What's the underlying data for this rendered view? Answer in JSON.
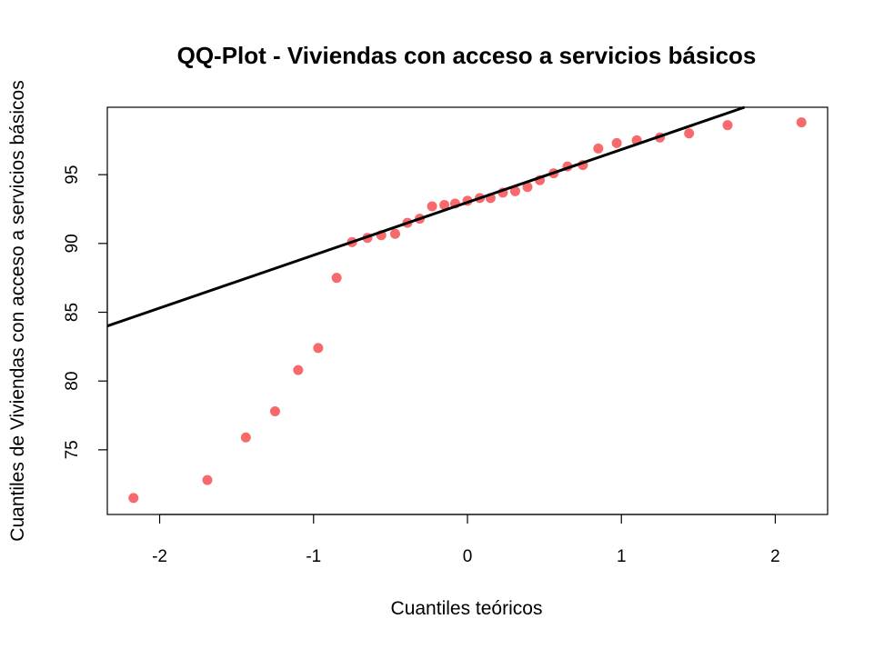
{
  "chart_data": {
    "type": "scatter",
    "title": "QQ-Plot - Viviendas con acceso a servicios básicos",
    "xlabel": "Cuantiles teóricos",
    "ylabel": "Cuantiles de Viviendas con acceso a servicios básicos",
    "xlim": [
      -2.34,
      2.34
    ],
    "ylim": [
      70.3,
      99.9
    ],
    "x_ticks": [
      -2,
      -1,
      0,
      1,
      2
    ],
    "x_tick_labels": [
      "-2",
      "-1",
      "0",
      "1",
      "2"
    ],
    "y_ticks": [
      75,
      80,
      85,
      90,
      95
    ],
    "y_tick_labels": [
      "75",
      "80",
      "85",
      "90",
      "95"
    ],
    "grid": false,
    "legend": "none",
    "point_color": "#F8696B",
    "line_color": "#000000",
    "reference_line": {
      "x": [
        -2.34,
        1.8
      ],
      "y": [
        84.0,
        99.9
      ]
    },
    "x": [
      -2.17,
      -1.69,
      -1.44,
      -1.25,
      -1.1,
      -0.97,
      -0.85,
      -0.75,
      -0.65,
      -0.56,
      -0.47,
      -0.39,
      -0.31,
      -0.23,
      -0.15,
      -0.08,
      0.0,
      0.08,
      0.15,
      0.23,
      0.31,
      0.39,
      0.47,
      0.56,
      0.65,
      0.75,
      0.85,
      0.97,
      1.1,
      1.25,
      1.44,
      1.69,
      2.17
    ],
    "y": [
      71.5,
      72.8,
      75.9,
      77.8,
      80.8,
      82.4,
      87.5,
      90.1,
      90.4,
      90.6,
      90.7,
      91.5,
      91.8,
      92.7,
      92.8,
      92.9,
      93.1,
      93.3,
      93.3,
      93.7,
      93.8,
      94.1,
      94.6,
      95.1,
      95.6,
      95.7,
      96.9,
      97.3,
      97.5,
      97.7,
      98.0,
      98.6,
      98.8
    ]
  }
}
